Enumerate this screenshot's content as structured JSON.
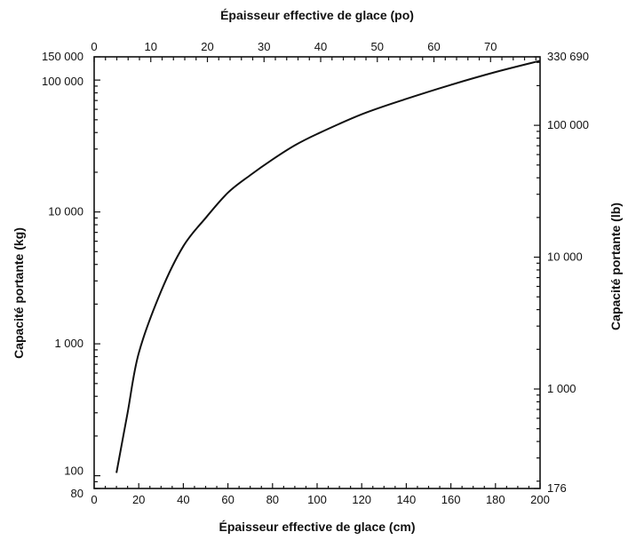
{
  "chart_data": {
    "type": "line",
    "title": "",
    "xlabel_bottom": "Épaisseur effective de glace (cm)",
    "xlabel_top": "Épaisseur effective de glace (po)",
    "ylabel_left": "Capacité portante (kg)",
    "ylabel_right": "Capacité portante (lb)",
    "x_bottom": {
      "unit": "cm",
      "range": [
        0,
        200
      ],
      "ticks": [
        "0",
        "20",
        "40",
        "60",
        "80",
        "100",
        "120",
        "140",
        "160",
        "180",
        "200"
      ]
    },
    "x_top": {
      "unit": "po",
      "range": [
        0,
        78.74
      ],
      "ticks": [
        "0",
        "10",
        "20",
        "30",
        "40",
        "50",
        "60",
        "70"
      ]
    },
    "y_left": {
      "unit": "kg",
      "scale": "log",
      "range": [
        80,
        150000
      ],
      "ticks": [
        "80",
        "100",
        "1 000",
        "10 000",
        "100 000",
        "150 000"
      ]
    },
    "y_right": {
      "unit": "lb",
      "scale": "log",
      "range": [
        176,
        330690
      ],
      "ticks": [
        "176",
        "1 000",
        "10 000",
        "100 000",
        "330 690"
      ]
    },
    "grid": false,
    "legend": "none",
    "series": [
      {
        "x": [
          10,
          15,
          20,
          30,
          40,
          50,
          60,
          70,
          80,
          90,
          100,
          120,
          140,
          160,
          180,
          200
        ],
        "y": [
          105,
          300,
          850,
          2500,
          5500,
          9000,
          14000,
          19000,
          25000,
          32000,
          39000,
          55000,
          72000,
          92000,
          115000,
          140000
        ]
      }
    ]
  }
}
